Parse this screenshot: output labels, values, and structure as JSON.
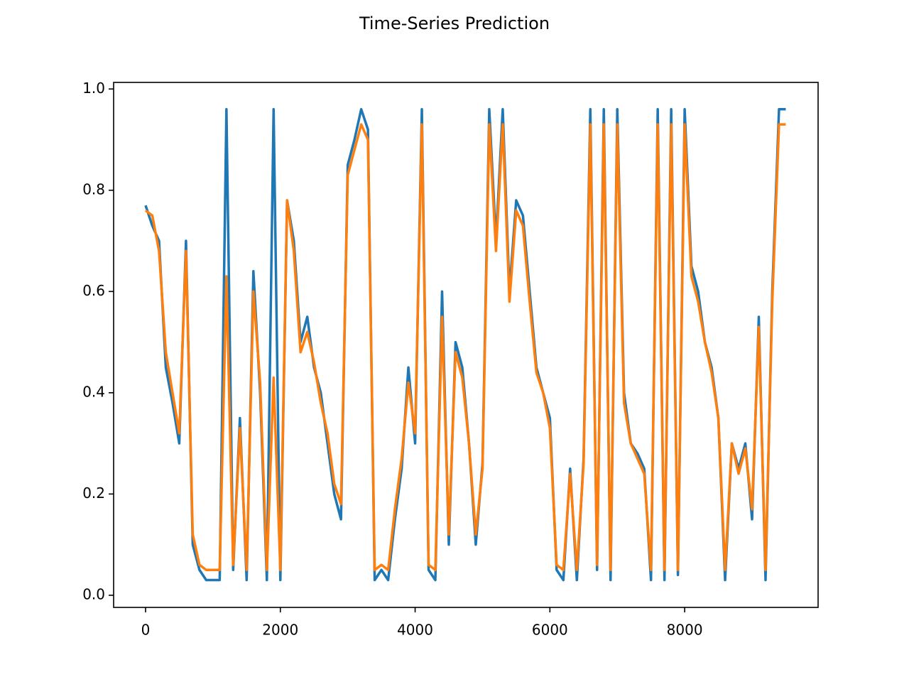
{
  "chart_data": {
    "type": "line",
    "title": "Time-Series Prediction",
    "x": [
      0,
      100,
      200,
      300,
      400,
      500,
      600,
      700,
      800,
      900,
      1000,
      1100,
      1200,
      1300,
      1400,
      1500,
      1600,
      1700,
      1800,
      1900,
      2000,
      2100,
      2200,
      2300,
      2400,
      2500,
      2600,
      2700,
      2800,
      2900,
      3000,
      3100,
      3200,
      3300,
      3400,
      3500,
      3600,
      3700,
      3800,
      3900,
      4000,
      4100,
      4200,
      4300,
      4400,
      4500,
      4600,
      4700,
      4800,
      4900,
      5000,
      5100,
      5200,
      5300,
      5400,
      5500,
      5600,
      5700,
      5800,
      5900,
      6000,
      6100,
      6200,
      6300,
      6400,
      6500,
      6600,
      6700,
      6800,
      6900,
      7000,
      7100,
      7200,
      7300,
      7400,
      7500,
      7600,
      7700,
      7800,
      7900,
      8000,
      8100,
      8200,
      8300,
      8400,
      8500,
      8600,
      8700,
      8800,
      8900,
      9000,
      9100,
      9200,
      9300,
      9400,
      9500
    ],
    "series": [
      {
        "color": "#1f77b4",
        "values": [
          0.77,
          0.73,
          0.7,
          0.45,
          0.38,
          0.3,
          0.7,
          0.1,
          0.05,
          0.03,
          0.03,
          0.03,
          0.96,
          0.05,
          0.35,
          0.03,
          0.64,
          0.4,
          0.03,
          0.96,
          0.03,
          0.78,
          0.7,
          0.5,
          0.55,
          0.45,
          0.4,
          0.3,
          0.2,
          0.15,
          0.85,
          0.9,
          0.96,
          0.92,
          0.03,
          0.05,
          0.03,
          0.15,
          0.25,
          0.45,
          0.3,
          0.96,
          0.05,
          0.03,
          0.6,
          0.1,
          0.5,
          0.45,
          0.3,
          0.1,
          0.26,
          0.96,
          0.7,
          0.96,
          0.6,
          0.78,
          0.75,
          0.6,
          0.45,
          0.4,
          0.35,
          0.05,
          0.03,
          0.25,
          0.03,
          0.27,
          0.96,
          0.05,
          0.96,
          0.03,
          0.96,
          0.4,
          0.3,
          0.28,
          0.25,
          0.03,
          0.96,
          0.03,
          0.96,
          0.04,
          0.96,
          0.65,
          0.6,
          0.5,
          0.45,
          0.35,
          0.03,
          0.3,
          0.25,
          0.3,
          0.15,
          0.55,
          0.03,
          0.6,
          0.96,
          0.96
        ]
      },
      {
        "color": "#ff7f0e",
        "values": [
          0.76,
          0.75,
          0.68,
          0.48,
          0.4,
          0.32,
          0.68,
          0.12,
          0.06,
          0.05,
          0.05,
          0.05,
          0.63,
          0.06,
          0.33,
          0.05,
          0.6,
          0.42,
          0.05,
          0.43,
          0.05,
          0.78,
          0.68,
          0.48,
          0.52,
          0.46,
          0.38,
          0.32,
          0.22,
          0.18,
          0.83,
          0.88,
          0.93,
          0.9,
          0.05,
          0.06,
          0.05,
          0.17,
          0.27,
          0.42,
          0.32,
          0.93,
          0.06,
          0.05,
          0.55,
          0.12,
          0.48,
          0.43,
          0.3,
          0.12,
          0.25,
          0.93,
          0.68,
          0.93,
          0.58,
          0.76,
          0.73,
          0.58,
          0.44,
          0.4,
          0.33,
          0.06,
          0.05,
          0.24,
          0.05,
          0.26,
          0.93,
          0.06,
          0.93,
          0.05,
          0.93,
          0.38,
          0.3,
          0.27,
          0.24,
          0.05,
          0.93,
          0.05,
          0.93,
          0.05,
          0.93,
          0.63,
          0.58,
          0.5,
          0.44,
          0.35,
          0.05,
          0.3,
          0.24,
          0.29,
          0.17,
          0.53,
          0.05,
          0.58,
          0.93,
          0.93
        ]
      }
    ],
    "xlim": [
      -474,
      9980
    ],
    "ylim": [
      -0.024,
      1.013
    ],
    "xticks": [
      0,
      2000,
      4000,
      6000,
      8000
    ],
    "yticks": [
      {
        "value": 0,
        "label": "0.0"
      },
      0.2,
      0.4,
      0.6,
      0.8,
      {
        "value": 1,
        "label": "1.0"
      }
    ]
  }
}
